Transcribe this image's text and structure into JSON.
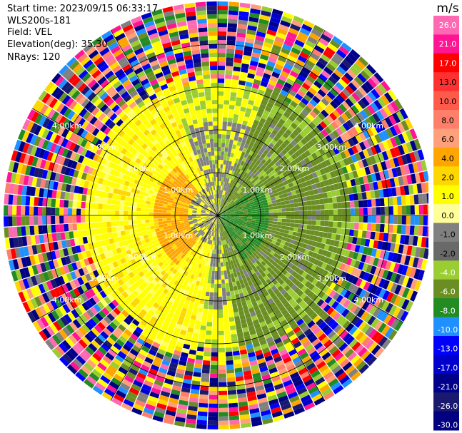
{
  "header": {
    "start_time": "Start time: 2023/09/15 06:33:17",
    "instrument": "WLS200s-181",
    "field": "Field: VEL",
    "elevation": "Elevation(deg): 35.30",
    "nrays": "NRays: 120"
  },
  "range_rings": {
    "labels": [
      "1.00km",
      "2.00km",
      "3.00km",
      "4.00km"
    ]
  },
  "colorbar": {
    "unit": "m/s",
    "ticks": [
      "26.0",
      "21.0",
      "17.0",
      "13.0",
      "10.0",
      "8.0",
      "6.0",
      "4.0",
      "2.0",
      "1.0",
      "0.0",
      "-1.0",
      "-2.0",
      "-4.0",
      "-6.0",
      "-8.0",
      "-10.0",
      "-13.0",
      "-17.0",
      "-21.0",
      "-26.0",
      "-30.0"
    ],
    "colors": [
      "#ff69b4",
      "#ff1493",
      "#ff0000",
      "#ff3030",
      "#ff5a4a",
      "#ff7f6a",
      "#ffa07a",
      "#ffa500",
      "#ffd700",
      "#ffff00",
      "#ffff99",
      "#808080",
      "#696969",
      "#9acd32",
      "#6b8e23",
      "#228b22",
      "#1e90ff",
      "#0000ff",
      "#0000cd",
      "#00008b",
      "#191970",
      "#000080"
    ]
  },
  "map_colors": {
    "yellow": "#ffff00",
    "light_yellow": "#ffff66",
    "gold": "#ffd700",
    "orange": "#ffa500",
    "gray": "#808080",
    "yellowgreen": "#9acd32",
    "olive": "#6b8e23",
    "green": "#228b22"
  }
}
